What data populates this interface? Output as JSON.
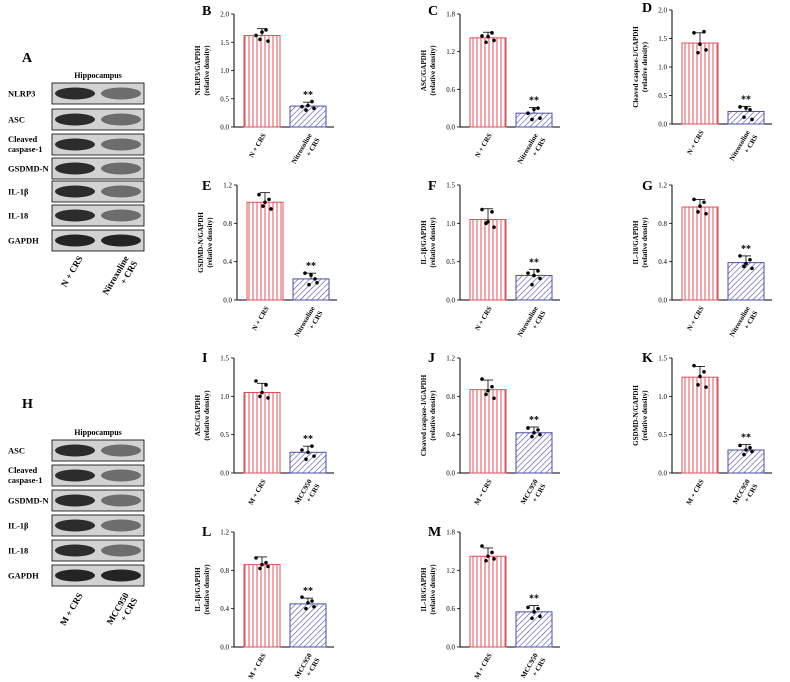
{
  "colors": {
    "group1": "#e0505a",
    "group2": "#4a4fa8",
    "axis": "#000000"
  },
  "western_blots": [
    {
      "panel_label": "A",
      "title": "Hippocampus",
      "rows": [
        "NLRP3",
        "ASC",
        "Cleaved caspase-1",
        "GSDMD-N",
        "IL-1β",
        "IL-18",
        "GAPDH"
      ],
      "lanes": [
        "N + CRS",
        "Nitroxoline + CRS"
      ]
    },
    {
      "panel_label": "H",
      "title": "Hippocampus",
      "rows": [
        "ASC",
        "Cleaved caspase-1",
        "GSDMD-N",
        "IL-1β",
        "IL-18",
        "GAPDH"
      ],
      "lanes": [
        "M + CRS",
        "MCC950 + CRS"
      ]
    }
  ],
  "chart_data": [
    {
      "panel_label": "B",
      "type": "bar",
      "ylabel_line1": "NLRP3/GAPDH",
      "ylabel_line2": "(relative density)",
      "categories": [
        "N + CRS",
        "Nitroxoline + CRS"
      ],
      "values": [
        1.62,
        0.37
      ],
      "errors": [
        0.12,
        0.07
      ],
      "ylim": [
        0,
        2.0
      ],
      "yticks": [
        "0.0",
        "0.5",
        "1.0",
        "1.5",
        "2.0"
      ],
      "significance": [
        "",
        "**"
      ],
      "points": [
        [
          1.62,
          1.72,
          1.55,
          1.52,
          1.68
        ],
        [
          0.36,
          0.45,
          0.3,
          0.33,
          0.38
        ]
      ]
    },
    {
      "panel_label": "C",
      "type": "bar",
      "ylabel_line1": "ASC/GAPDH",
      "ylabel_line2": "(relative density)",
      "categories": [
        "N + CRS",
        "Nitroxoline + CRS"
      ],
      "values": [
        1.42,
        0.22
      ],
      "errors": [
        0.09,
        0.09
      ],
      "ylim": [
        0,
        1.8
      ],
      "yticks": [
        "0.0",
        "0.6",
        "1.2",
        "1.8"
      ],
      "significance": [
        "",
        "**"
      ],
      "points": [
        [
          1.45,
          1.5,
          1.35,
          1.38,
          1.44
        ],
        [
          0.22,
          0.3,
          0.12,
          0.14,
          0.28
        ]
      ]
    },
    {
      "panel_label": "D",
      "type": "bar",
      "ylabel_line1": "Cleaved caspase-1/GAPDH",
      "ylabel_line2": "(relative density)",
      "categories": [
        "N + CRS",
        "Nitroxoline + CRS"
      ],
      "values": [
        1.42,
        0.22
      ],
      "errors": [
        0.18,
        0.09
      ],
      "ylim": [
        0,
        2.0
      ],
      "yticks": [
        "0.0",
        "0.5",
        "1.0",
        "1.5",
        "2.0"
      ],
      "significance": [
        "",
        "**"
      ],
      "points": [
        [
          1.6,
          1.62,
          1.25,
          1.3,
          1.4
        ],
        [
          0.3,
          0.25,
          0.12,
          0.08,
          0.28
        ]
      ]
    },
    {
      "panel_label": "E",
      "type": "bar",
      "ylabel_line1": "GSDMD-N/GAPDH",
      "ylabel_line2": "(relative density)",
      "categories": [
        "N + CRS",
        "Nitroxoline + CRS"
      ],
      "values": [
        1.02,
        0.22
      ],
      "errors": [
        0.1,
        0.06
      ],
      "ylim": [
        0,
        1.2
      ],
      "yticks": [
        "0.0",
        "0.4",
        "0.8",
        "1.2"
      ],
      "significance": [
        "",
        "**"
      ],
      "points": [
        [
          1.1,
          1.05,
          0.98,
          0.95,
          1.02
        ],
        [
          0.28,
          0.22,
          0.16,
          0.18,
          0.26
        ]
      ]
    },
    {
      "panel_label": "F",
      "type": "bar",
      "ylabel_line1": "IL-1β/GAPDH",
      "ylabel_line2": "(relative density)",
      "categories": [
        "N + CRS",
        "Nitroxoline + CRS"
      ],
      "values": [
        1.05,
        0.32
      ],
      "errors": [
        0.14,
        0.08
      ],
      "ylim": [
        0,
        1.5
      ],
      "yticks": [
        "0.0",
        "0.5",
        "1.0",
        "1.5"
      ],
      "significance": [
        "",
        "**"
      ],
      "points": [
        [
          1.18,
          1.15,
          1.0,
          0.95,
          1.02
        ],
        [
          0.35,
          0.38,
          0.2,
          0.28,
          0.32
        ]
      ]
    },
    {
      "panel_label": "G",
      "type": "bar",
      "ylabel_line1": "IL-18/GAPDH",
      "ylabel_line2": "(relative density)",
      "categories": [
        "N + CRS",
        "Nitroxoline + CRS"
      ],
      "values": [
        0.97,
        0.39
      ],
      "errors": [
        0.08,
        0.07
      ],
      "ylim": [
        0,
        1.2
      ],
      "yticks": [
        "0.0",
        "0.4",
        "0.8",
        "1.2"
      ],
      "significance": [
        "",
        "**"
      ],
      "points": [
        [
          1.05,
          1.02,
          0.92,
          0.9,
          0.98
        ],
        [
          0.46,
          0.42,
          0.35,
          0.33,
          0.38
        ]
      ]
    },
    {
      "panel_label": "I",
      "type": "bar",
      "ylabel_line1": "ASC/GAPDH",
      "ylabel_line2": "(relative density)",
      "categories": [
        "M + CRS",
        "MCC950 + CRS"
      ],
      "values": [
        1.05,
        0.27
      ],
      "errors": [
        0.12,
        0.08
      ],
      "ylim": [
        0,
        1.5
      ],
      "yticks": [
        "0.0",
        "0.5",
        "1.0",
        "1.5"
      ],
      "significance": [
        "",
        "**"
      ],
      "points": [
        [
          1.2,
          1.15,
          1.0,
          0.98,
          1.05
        ],
        [
          0.3,
          0.35,
          0.18,
          0.22,
          0.27
        ]
      ]
    },
    {
      "panel_label": "J",
      "type": "bar",
      "ylabel_line1": "Cleaved caspase-1/GAPDH",
      "ylabel_line2": "(relative density)",
      "categories": [
        "M + CRS",
        "MCC950 + CRS"
      ],
      "values": [
        0.87,
        0.42
      ],
      "errors": [
        0.1,
        0.06
      ],
      "ylim": [
        0,
        1.2
      ],
      "yticks": [
        "0.0",
        "0.4",
        "0.8",
        "1.2"
      ],
      "significance": [
        "",
        "**"
      ],
      "points": [
        [
          0.98,
          0.9,
          0.82,
          0.78,
          0.86
        ],
        [
          0.47,
          0.45,
          0.38,
          0.4,
          0.42
        ]
      ]
    },
    {
      "panel_label": "K",
      "type": "bar",
      "ylabel_line1": "GSDMD-N/GAPDH",
      "ylabel_line2": "(relative density)",
      "categories": [
        "M + CRS",
        "MCC950 + CRS"
      ],
      "values": [
        1.25,
        0.3
      ],
      "errors": [
        0.14,
        0.07
      ],
      "ylim": [
        0,
        1.5
      ],
      "yticks": [
        "0.0",
        "0.5",
        "1.0",
        "1.5"
      ],
      "significance": [
        "",
        "**"
      ],
      "points": [
        [
          1.4,
          1.32,
          1.15,
          1.12,
          1.26
        ],
        [
          0.36,
          0.33,
          0.24,
          0.28,
          0.3
        ]
      ]
    },
    {
      "panel_label": "L",
      "type": "bar",
      "ylabel_line1": "IL-1β/GAPDH",
      "ylabel_line2": "(relative density)",
      "categories": [
        "M + CRS",
        "MCC950 + CRS"
      ],
      "values": [
        0.86,
        0.45
      ],
      "errors": [
        0.08,
        0.06
      ],
      "ylim": [
        0,
        1.2
      ],
      "yticks": [
        "0.0",
        "0.4",
        "0.8",
        "1.2"
      ],
      "significance": [
        "",
        "**"
      ],
      "points": [
        [
          0.93,
          0.88,
          0.82,
          0.84,
          0.86
        ],
        [
          0.52,
          0.48,
          0.4,
          0.42,
          0.46
        ]
      ]
    },
    {
      "panel_label": "M",
      "type": "bar",
      "ylabel_line1": "IL-18/GAPDH",
      "ylabel_line2": "(relative density)",
      "categories": [
        "M + CRS",
        "MCC950 + CRS"
      ],
      "values": [
        1.42,
        0.55
      ],
      "errors": [
        0.13,
        0.1
      ],
      "ylim": [
        0,
        1.8
      ],
      "yticks": [
        "0.0",
        "0.6",
        "1.2",
        "1.8"
      ],
      "significance": [
        "",
        "**"
      ],
      "points": [
        [
          1.58,
          1.48,
          1.35,
          1.38,
          1.42
        ],
        [
          0.62,
          0.6,
          0.45,
          0.48,
          0.55
        ]
      ]
    }
  ]
}
